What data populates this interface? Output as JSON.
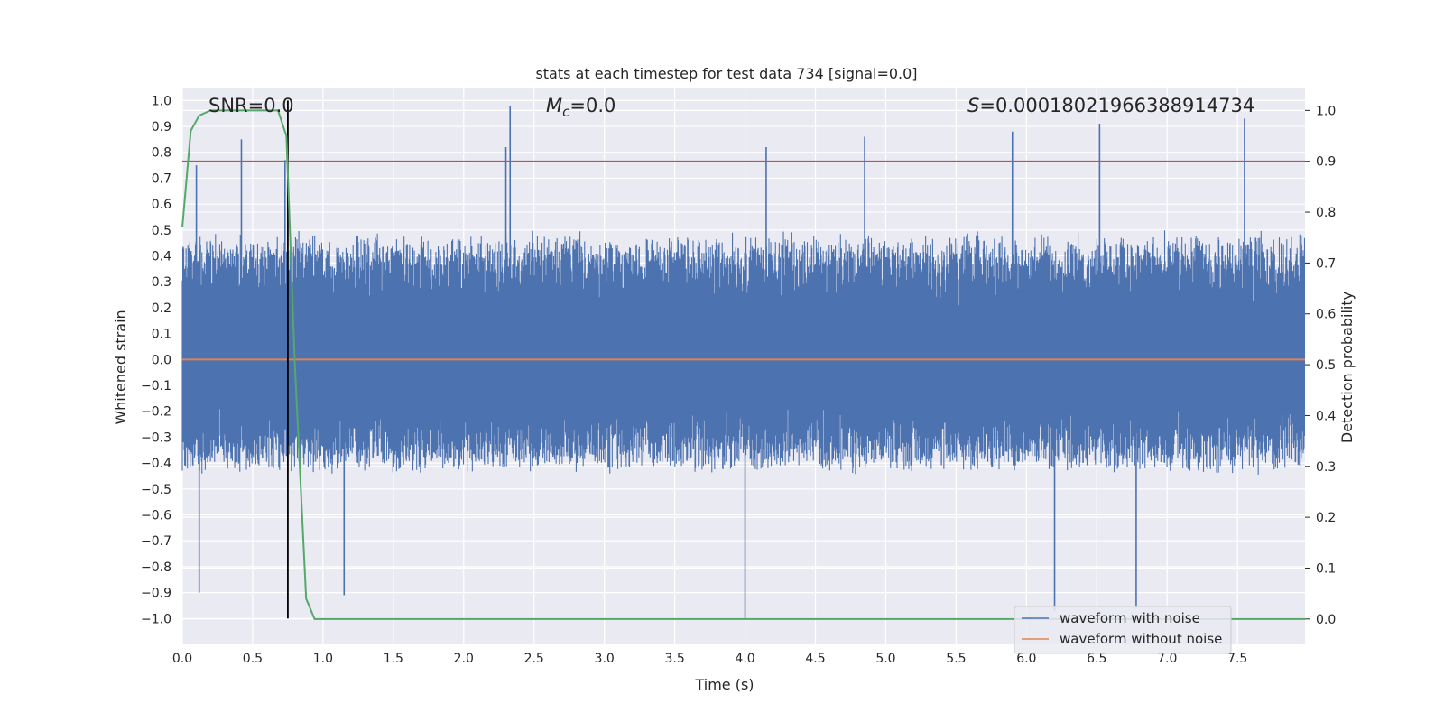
{
  "chart_data": {
    "type": "line",
    "title": "stats at each timestep for test data 734 [signal=0.0]",
    "xlabel": "Time (s)",
    "ylabel_left": "Whitened strain",
    "ylabel_right": "Detection probability",
    "xlim": [
      0.0,
      7.98
    ],
    "ylim_left": [
      -1.1,
      1.05
    ],
    "ylim_right": [
      -0.05,
      1.045
    ],
    "x_ticks": [
      "0.0",
      "0.5",
      "1.0",
      "1.5",
      "2.0",
      "2.5",
      "3.0",
      "3.5",
      "4.0",
      "4.5",
      "5.0",
      "5.5",
      "6.0",
      "6.5",
      "7.0",
      "7.5"
    ],
    "y_ticks_left": [
      "1.0",
      "0.9",
      "0.8",
      "0.7",
      "0.6",
      "0.5",
      "0.4",
      "0.3",
      "0.2",
      "0.1",
      "0.0",
      "−0.1",
      "−0.2",
      "−0.3",
      "−0.4",
      "−0.5",
      "−0.6",
      "−0.7",
      "−0.8",
      "−0.9",
      "−1.0"
    ],
    "y_ticks_right": [
      "1.0",
      "0.9",
      "0.8",
      "0.7",
      "0.6",
      "0.5",
      "0.4",
      "0.3",
      "0.2",
      "0.1",
      "0.0"
    ],
    "grid": true,
    "legend_position": "bottom-right",
    "annotations": {
      "snr": "SNR=0.0",
      "mc_symbol": "M",
      "mc_sub": "c",
      "mc_value": "=0.0",
      "s_symbol": "S",
      "s_value": "=0.00018021966388914734"
    },
    "series": [
      {
        "name": "waveform with noise",
        "axis": "left",
        "color": "#4c72b0",
        "style": "dense noise band",
        "typical_range": [
          -0.45,
          0.5
        ],
        "peak_points": [
          {
            "x": 0.1,
            "y": 0.75
          },
          {
            "x": 0.42,
            "y": 0.85
          },
          {
            "x": 0.73,
            "y": 0.77
          },
          {
            "x": 2.33,
            "y": 0.98
          },
          {
            "x": 2.3,
            "y": 0.82
          },
          {
            "x": 4.15,
            "y": 0.82
          },
          {
            "x": 4.85,
            "y": 0.86
          },
          {
            "x": 5.9,
            "y": 0.88
          },
          {
            "x": 6.52,
            "y": 0.91
          },
          {
            "x": 7.55,
            "y": 0.93
          },
          {
            "x": 0.12,
            "y": -0.9
          },
          {
            "x": 1.15,
            "y": -0.91
          },
          {
            "x": 4.0,
            "y": -1.0
          },
          {
            "x": 6.2,
            "y": -0.97
          },
          {
            "x": 6.78,
            "y": -0.96
          }
        ]
      },
      {
        "name": "waveform without noise",
        "axis": "left",
        "color": "#dd8452",
        "x": [
          0.0,
          7.98
        ],
        "y": [
          0.0,
          0.0
        ]
      },
      {
        "name": "",
        "axis": "right",
        "color": "#55a868",
        "x": [
          0.0,
          0.06,
          0.12,
          0.2,
          0.3,
          0.5,
          0.68,
          0.74,
          0.8,
          0.88,
          0.94,
          1.0,
          3.0,
          6.0,
          7.98
        ],
        "y": [
          0.77,
          0.96,
          0.99,
          1.0,
          1.0,
          1.0,
          1.0,
          0.95,
          0.5,
          0.04,
          0.0,
          0.0,
          0.0,
          0.0,
          0.0
        ]
      }
    ],
    "reference_lines": [
      {
        "orientation": "horizontal",
        "axis": "right",
        "value": 0.9,
        "color": "#c44e52"
      },
      {
        "orientation": "vertical",
        "value": 0.75,
        "color": "#000000",
        "y_range": [
          -1.0,
          1.0
        ]
      }
    ]
  }
}
